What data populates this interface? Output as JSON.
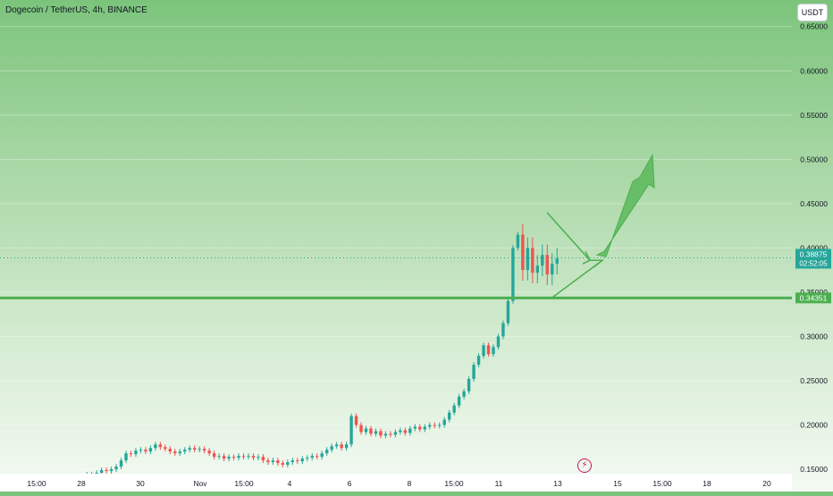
{
  "header": {
    "symbol_title": "Dogecoin / TetherUS, 4h, BINANCE",
    "currency_button": "USDT"
  },
  "colors": {
    "up": "#26a69a",
    "down": "#ef5350",
    "support_line": "#4caf50",
    "pattern": "#4caf50",
    "arrow": "#5cb85c"
  },
  "chart_data": {
    "type": "candlestick",
    "title": "Dogecoin / TetherUS, 4h, BINANCE",
    "ylim": [
      0.145,
      0.68
    ],
    "y_ticks": [
      0.15,
      0.2,
      0.25,
      0.3,
      0.35,
      0.4,
      0.45,
      0.5,
      0.55,
      0.6,
      0.65
    ],
    "y_tick_labels": [
      "0.15000",
      "0.20000",
      "0.25000",
      "0.30000",
      "0.35000",
      "0.40000",
      "0.45000",
      "0.50000",
      "0.55000",
      "0.60000",
      "0.65000"
    ],
    "x_tick_labels": [
      "15:00",
      "28",
      "30",
      "Nov",
      "15:00",
      "4",
      "6",
      "8",
      "15:00",
      "11",
      "13",
      "15",
      "15:00",
      "18",
      "20"
    ],
    "current_price": {
      "value": 0.38875,
      "label": "0.38875",
      "countdown": "02:52:05"
    },
    "horizontal_line": {
      "value": 0.34351,
      "label": "0.34351"
    },
    "pattern": "symmetrical triangle",
    "annotation": "upward arrow projection",
    "candles": [
      [
        0.136,
        0.14
      ],
      [
        0.14,
        0.138
      ],
      [
        0.138,
        0.135
      ],
      [
        0.135,
        0.131
      ],
      [
        0.131,
        0.133
      ],
      [
        0.133,
        0.13
      ],
      [
        0.13,
        0.132
      ],
      [
        0.132,
        0.134
      ],
      [
        0.134,
        0.135
      ],
      [
        0.135,
        0.134
      ],
      [
        0.134,
        0.136
      ],
      [
        0.136,
        0.137
      ],
      [
        0.137,
        0.136
      ],
      [
        0.136,
        0.138
      ],
      [
        0.138,
        0.14
      ],
      [
        0.14,
        0.142
      ],
      [
        0.142,
        0.141
      ],
      [
        0.141,
        0.144
      ],
      [
        0.144,
        0.143
      ],
      [
        0.143,
        0.146
      ],
      [
        0.146,
        0.149
      ],
      [
        0.149,
        0.148
      ],
      [
        0.148,
        0.15
      ],
      [
        0.15,
        0.153
      ],
      [
        0.153,
        0.16
      ],
      [
        0.16,
        0.168
      ],
      [
        0.168,
        0.167
      ],
      [
        0.167,
        0.171
      ],
      [
        0.171,
        0.172
      ],
      [
        0.172,
        0.17
      ],
      [
        0.17,
        0.174
      ],
      [
        0.174,
        0.178
      ],
      [
        0.178,
        0.175
      ],
      [
        0.175,
        0.173
      ],
      [
        0.173,
        0.17
      ],
      [
        0.17,
        0.168
      ],
      [
        0.168,
        0.17
      ],
      [
        0.17,
        0.172
      ],
      [
        0.172,
        0.174
      ],
      [
        0.174,
        0.172
      ],
      [
        0.172,
        0.173
      ],
      [
        0.173,
        0.171
      ],
      [
        0.171,
        0.168
      ],
      [
        0.168,
        0.164
      ],
      [
        0.164,
        0.165
      ],
      [
        0.165,
        0.162
      ],
      [
        0.162,
        0.164
      ],
      [
        0.164,
        0.163
      ],
      [
        0.163,
        0.165
      ],
      [
        0.165,
        0.164
      ],
      [
        0.164,
        0.165
      ],
      [
        0.165,
        0.163
      ],
      [
        0.163,
        0.164
      ],
      [
        0.164,
        0.16
      ],
      [
        0.16,
        0.158
      ],
      [
        0.158,
        0.16
      ],
      [
        0.16,
        0.157
      ],
      [
        0.157,
        0.155
      ],
      [
        0.155,
        0.158
      ],
      [
        0.158,
        0.16
      ],
      [
        0.16,
        0.159
      ],
      [
        0.159,
        0.162
      ],
      [
        0.162,
        0.163
      ],
      [
        0.163,
        0.165
      ],
      [
        0.165,
        0.164
      ],
      [
        0.164,
        0.168
      ],
      [
        0.168,
        0.172
      ],
      [
        0.172,
        0.176
      ],
      [
        0.176,
        0.178
      ],
      [
        0.178,
        0.174
      ],
      [
        0.174,
        0.178
      ],
      [
        0.178,
        0.21
      ],
      [
        0.21,
        0.2
      ],
      [
        0.2,
        0.192
      ],
      [
        0.192,
        0.196
      ],
      [
        0.196,
        0.19
      ],
      [
        0.19,
        0.193
      ],
      [
        0.193,
        0.188
      ],
      [
        0.188,
        0.19
      ],
      [
        0.19,
        0.189
      ],
      [
        0.189,
        0.192
      ],
      [
        0.192,
        0.194
      ],
      [
        0.194,
        0.191
      ],
      [
        0.191,
        0.196
      ],
      [
        0.196,
        0.198
      ],
      [
        0.198,
        0.195
      ],
      [
        0.195,
        0.198
      ],
      [
        0.198,
        0.2
      ],
      [
        0.2,
        0.199
      ],
      [
        0.199,
        0.2
      ],
      [
        0.2,
        0.206
      ],
      [
        0.206,
        0.214
      ],
      [
        0.214,
        0.222
      ],
      [
        0.222,
        0.232
      ],
      [
        0.232,
        0.238
      ],
      [
        0.238,
        0.252
      ],
      [
        0.252,
        0.268
      ],
      [
        0.268,
        0.278
      ],
      [
        0.278,
        0.29
      ],
      [
        0.29,
        0.28
      ],
      [
        0.28,
        0.288
      ],
      [
        0.288,
        0.3
      ],
      [
        0.3,
        0.315
      ],
      [
        0.315,
        0.34
      ],
      [
        0.34,
        0.4
      ],
      [
        0.4,
        0.415
      ],
      [
        0.415,
        0.375
      ],
      [
        0.375,
        0.4
      ],
      [
        0.4,
        0.372
      ],
      [
        0.372,
        0.38
      ],
      [
        0.38,
        0.392
      ],
      [
        0.392,
        0.37
      ],
      [
        0.37,
        0.382
      ],
      [
        0.382,
        0.388
      ]
    ]
  }
}
